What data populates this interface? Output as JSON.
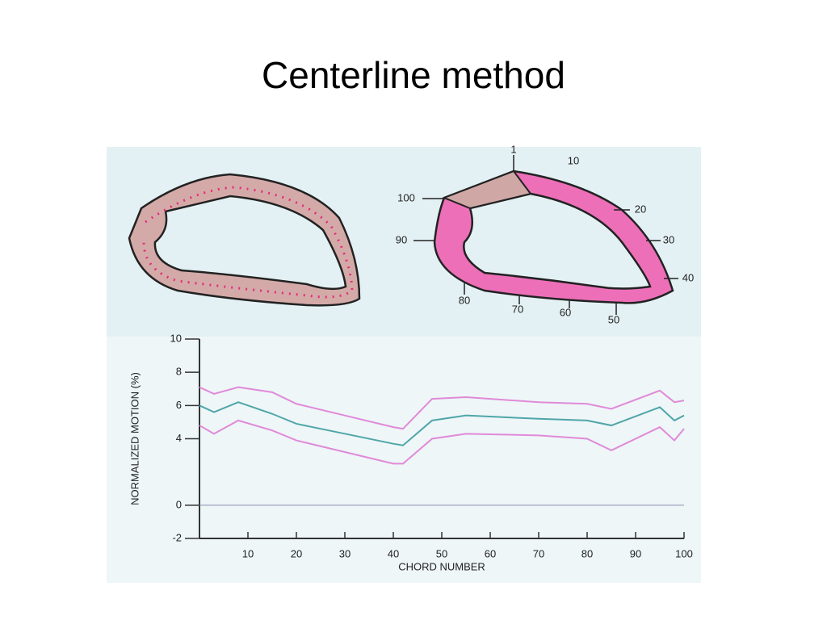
{
  "title": "Centerline method",
  "diagram": {
    "labels": [
      "1",
      "10",
      "20",
      "30",
      "40",
      "50",
      "60",
      "70",
      "80",
      "90",
      "100"
    ]
  },
  "chart_data": {
    "type": "line",
    "y_label": "NORMALIZED MOTION (%)",
    "x_label": "CHORD NUMBER",
    "x": [
      0,
      3,
      8,
      15,
      20,
      30,
      40,
      42,
      48,
      55,
      70,
      80,
      85,
      95,
      98,
      100
    ],
    "series": [
      {
        "color": "#e08ad8",
        "values": [
          7.1,
          6.7,
          7.1,
          6.8,
          6.1,
          5.4,
          4.7,
          4.6,
          6.4,
          6.5,
          6.2,
          6.1,
          5.8,
          6.9,
          6.2,
          6.3
        ]
      },
      {
        "color": "#4fa6a8",
        "values": [
          6,
          5.6,
          6.2,
          5.5,
          4.9,
          4.3,
          3.7,
          3.6,
          5.1,
          5.4,
          5.2,
          5.1,
          4.8,
          5.9,
          5.1,
          5.4
        ]
      },
      {
        "color": "#e08ad8",
        "values": [
          4.8,
          4.3,
          5.1,
          4.5,
          3.9,
          3.2,
          2.5,
          2.5,
          4,
          4.3,
          4.2,
          4,
          3.3,
          4.7,
          3.9,
          4.6
        ]
      }
    ],
    "xlim": [
      0,
      100
    ],
    "xticks": [
      10,
      20,
      30,
      40,
      50,
      60,
      70,
      80,
      90,
      100
    ],
    "ylim": [
      -2,
      10
    ],
    "yticks": [
      -2,
      0,
      4,
      6,
      8,
      10
    ],
    "grid": false
  }
}
